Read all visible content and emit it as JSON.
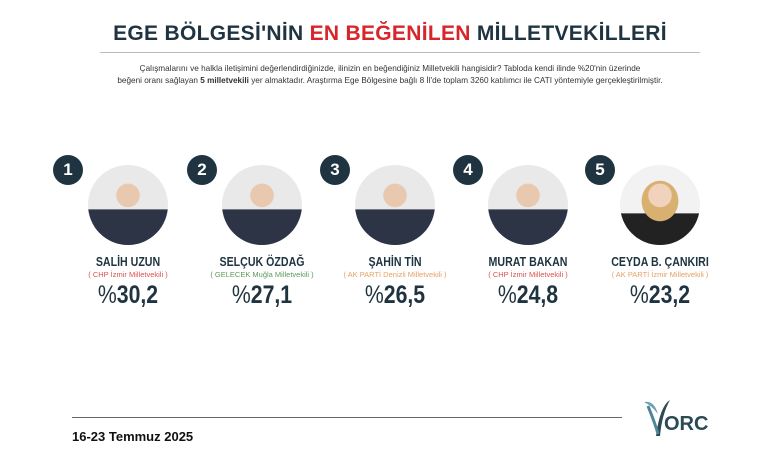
{
  "title": {
    "part1": "EGE BÖLGESİ'NİN ",
    "highlight": "EN BEĞENİLEN",
    "part2": " MİLLETVEKİLLERİ"
  },
  "description": {
    "line1": "Çalışmalarını ve halkla iletişimini değerlendirdiğinizde, ilinizin en beğendiğiniz Milletvekili hangisidir? Tabloda kendi ilinde %20'nin üzerinde",
    "line2_a": "beğeni oranı sağlayan ",
    "line2_bold": "5 milletvekili",
    "line2_b": " yer almaktadır. Araştırma Ege Bölgesine bağlı 8 İl'de toplam 3260 katılımcı ile CATI yöntemiyle gerçekleştirilmiştir."
  },
  "ranking": [
    {
      "rank": "1",
      "name": "SALİH UZUN",
      "party": "( CHP İzmir Milletvekili )",
      "party_color": "#d9534f",
      "percent_symbol": "%",
      "value": "30,2"
    },
    {
      "rank": "2",
      "name": "SELÇUK ÖZDAĞ",
      "party": "( GELECEK Muğla Milletvekili )",
      "party_color": "#5b9a5b",
      "percent_symbol": "%",
      "value": "27,1"
    },
    {
      "rank": "3",
      "name": "ŞAHİN TİN",
      "party": "( AK PARTİ Denizli Milletvekili )",
      "party_color": "#e3a166",
      "percent_symbol": "%",
      "value": "26,5"
    },
    {
      "rank": "4",
      "name": "MURAT BAKAN",
      "party": "( CHP İzmir Milletvekili )",
      "party_color": "#d9534f",
      "percent_symbol": "%",
      "value": "24,8"
    },
    {
      "rank": "5",
      "name": "CEYDA B. ÇANKIRI",
      "party": "( AK PARTİ İzmir Milletvekili )",
      "party_color": "#e3a166",
      "percent_symbol": "%",
      "value": "23,2"
    }
  ],
  "footer": {
    "date": "16-23 Temmuz 2025",
    "logo_text": "ORC"
  }
}
